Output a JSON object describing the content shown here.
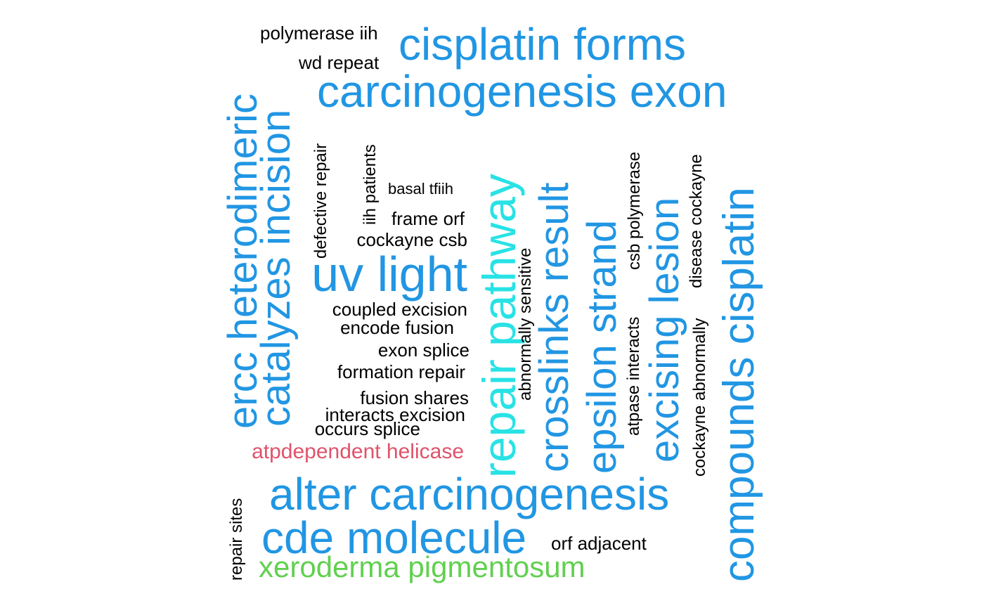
{
  "colors": {
    "blue": "#2196E3",
    "cyan": "#28E2E5",
    "red": "#DF536B",
    "green": "#61D04F",
    "black": "#000000"
  },
  "words": [
    {
      "text": "cisplatin forms",
      "color": "blue"
    },
    {
      "text": "carcinogenesis exon",
      "color": "blue"
    },
    {
      "text": "polymerase iih",
      "color": "black"
    },
    {
      "text": "wd repeat",
      "color": "black"
    },
    {
      "text": "ercc heterodimeric",
      "color": "blue"
    },
    {
      "text": "catalyzes incision",
      "color": "blue"
    },
    {
      "text": "defective repair",
      "color": "black"
    },
    {
      "text": "iih patients",
      "color": "black"
    },
    {
      "text": "basal tfiih",
      "color": "black"
    },
    {
      "text": "frame orf",
      "color": "black"
    },
    {
      "text": "cockayne csb",
      "color": "black"
    },
    {
      "text": "uv light",
      "color": "blue"
    },
    {
      "text": "coupled excision",
      "color": "black"
    },
    {
      "text": "encode fusion",
      "color": "black"
    },
    {
      "text": "exon splice",
      "color": "black"
    },
    {
      "text": "formation repair",
      "color": "black"
    },
    {
      "text": "fusion shares",
      "color": "black"
    },
    {
      "text": "interacts excision",
      "color": "black"
    },
    {
      "text": "occurs splice",
      "color": "black"
    },
    {
      "text": "atpdependent helicase",
      "color": "red"
    },
    {
      "text": "repair pathway",
      "color": "cyan"
    },
    {
      "text": "abnormally sensitive",
      "color": "black"
    },
    {
      "text": "crosslinks result",
      "color": "blue"
    },
    {
      "text": "epsilon strand",
      "color": "blue"
    },
    {
      "text": "csb polymerase",
      "color": "black"
    },
    {
      "text": "atpase interacts",
      "color": "black"
    },
    {
      "text": "excising lesion",
      "color": "blue"
    },
    {
      "text": "disease cockayne",
      "color": "black"
    },
    {
      "text": "cockayne abnormally",
      "color": "black"
    },
    {
      "text": "compounds cisplatin",
      "color": "blue"
    },
    {
      "text": "alter carcinogenesis",
      "color": "blue"
    },
    {
      "text": "cde molecule",
      "color": "blue"
    },
    {
      "text": "orf adjacent",
      "color": "black"
    },
    {
      "text": "repair sites",
      "color": "black"
    },
    {
      "text": "xeroderma pigmentosum",
      "color": "green"
    }
  ]
}
